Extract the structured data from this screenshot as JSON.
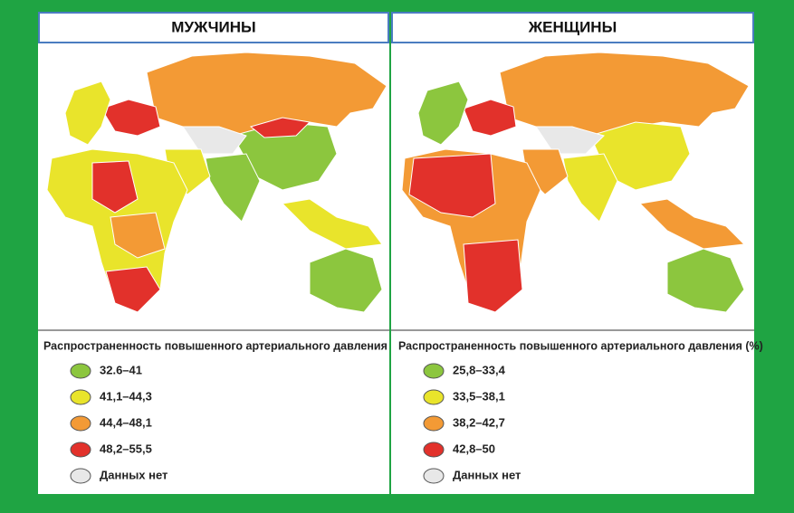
{
  "panels": [
    {
      "title": "МУЖЧИНЫ",
      "legend_title": "Распространенность повышенного артериального давления (%)",
      "legend": [
        {
          "label": "32.6–41",
          "color": "#8cc63e"
        },
        {
          "label": "41,1–44,3",
          "color": "#e9e42b"
        },
        {
          "label": "44,4–48,1",
          "color": "#f39a35"
        },
        {
          "label": "48,2–55,5",
          "color": "#e2312b"
        },
        {
          "label": "Данных нет",
          "color": "#e8e8e8"
        }
      ]
    },
    {
      "title": "ЖЕНЩИНЫ",
      "legend_title": "Распространенность повышенного артериального давления (%)",
      "legend": [
        {
          "label": "25,8–33,4",
          "color": "#8cc63e"
        },
        {
          "label": "33,5–38,1",
          "color": "#e9e42b"
        },
        {
          "label": "38,2–42,7",
          "color": "#f39a35"
        },
        {
          "label": "42,8–50",
          "color": "#e2312b"
        },
        {
          "label": "Данных нет",
          "color": "#e8e8e8"
        }
      ]
    }
  ]
}
